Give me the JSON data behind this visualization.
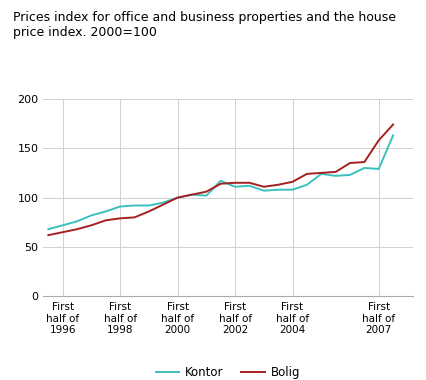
{
  "title": "Prices index for office and business properties and the house\nprice index. 2000=100",
  "title_fontsize": 9,
  "kontor_x": [
    1995.5,
    1996.0,
    1996.5,
    1997.0,
    1997.5,
    1998.0,
    1998.5,
    1999.0,
    1999.5,
    2000.0,
    2000.5,
    2001.0,
    2001.5,
    2002.0,
    2002.5,
    2003.0,
    2003.5,
    2004.0,
    2004.5,
    2005.0,
    2005.5,
    2006.0,
    2006.5,
    2007.0,
    2007.5
  ],
  "kontor_y": [
    68,
    72,
    76,
    82,
    86,
    91,
    92,
    92,
    95,
    100,
    103,
    102,
    117,
    111,
    112,
    107,
    108,
    108,
    113,
    124,
    122,
    123,
    130,
    129,
    163
  ],
  "bolig_x": [
    1995.5,
    1996.0,
    1996.5,
    1997.0,
    1997.5,
    1998.0,
    1998.5,
    1999.0,
    1999.5,
    2000.0,
    2000.5,
    2001.0,
    2001.5,
    2002.0,
    2002.5,
    2003.0,
    2003.5,
    2004.0,
    2004.5,
    2005.0,
    2005.5,
    2006.0,
    2006.5,
    2007.0,
    2007.5
  ],
  "bolig_y": [
    62,
    65,
    68,
    72,
    77,
    79,
    80,
    86,
    93,
    100,
    103,
    106,
    114,
    115,
    115,
    111,
    113,
    116,
    124,
    125,
    126,
    135,
    136,
    158,
    174
  ],
  "kontor_color": "#3dbfbf",
  "bolig_color": "#a52020",
  "ylim": [
    0,
    200
  ],
  "yticks": [
    0,
    50,
    100,
    150,
    200
  ],
  "xlim_left": 1995.3,
  "xlim_right": 2008.2,
  "xtick_positions": [
    1996.0,
    1998.0,
    2000.0,
    2002.0,
    2004.0,
    2007.0
  ],
  "xtick_labels": [
    "First\nhalf of\n1996",
    "First\nhalf of\n1998",
    "First\nhalf of\n2000",
    "First\nhalf of\n2002",
    "First\nhalf of\n2004",
    "First\nhalf of\n2007"
  ],
  "legend_kontor": "Kontor",
  "legend_bolig": "Bolig",
  "grid_color": "#d0d0d0",
  "background_color": "#ffffff",
  "line_width": 1.4
}
